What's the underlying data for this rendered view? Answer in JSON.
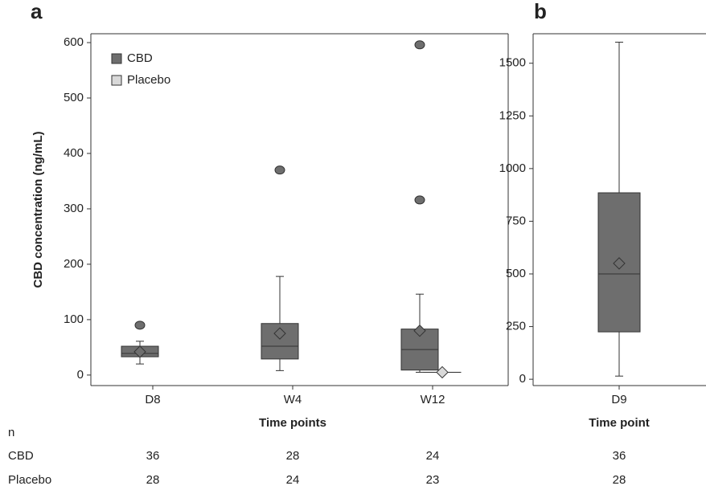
{
  "n_label": "n",
  "chart_data": [
    {
      "type": "box",
      "panel_label": "a",
      "y_label": "CBD concentration (ng/mL)",
      "x_label": "Time points",
      "categories": [
        "D8",
        "W4",
        "W12"
      ],
      "ylim": [
        -19,
        616
      ],
      "yticks": [
        0,
        100,
        200,
        300,
        400,
        500,
        600
      ],
      "legend": "upper left",
      "series": [
        {
          "name": "CBD",
          "color": "#6e6e6e",
          "values": [
            {
              "min": 20,
              "q1": 33,
              "median": 39,
              "q3": 52,
              "max": 61,
              "mean": 42,
              "outliers": [
                90
              ]
            },
            {
              "min": 8,
              "q1": 29,
              "median": 52,
              "q3": 93,
              "max": 178,
              "mean": 75,
              "outliers": [
                370
              ]
            },
            {
              "min": 5,
              "q1": 9,
              "median": 46,
              "q3": 83,
              "max": 146,
              "mean": 80,
              "outliers": [
                316,
                596
              ]
            }
          ]
        },
        {
          "name": "Placebo",
          "color": "#d9d9d9",
          "values": [
            null,
            null,
            {
              "min": 5,
              "q1": 5,
              "median": 5,
              "q3": 5,
              "max": 5,
              "mean": 5,
              "outliers": []
            }
          ]
        }
      ],
      "counts": [
        {
          "name": "CBD",
          "values": [
            36,
            28,
            24
          ]
        },
        {
          "name": "Placebo",
          "values": [
            28,
            24,
            23
          ]
        }
      ]
    },
    {
      "type": "box",
      "panel_label": "b",
      "x_label": "Time point",
      "categories": [
        "D9"
      ],
      "ylim": [
        -30,
        1640
      ],
      "yticks": [
        0,
        250,
        500,
        750,
        1000,
        1250,
        1500
      ],
      "series": [
        {
          "color": "#6e6e6e",
          "values": [
            {
              "min": 15,
              "q1": 225,
              "median": 500,
              "q3": 885,
              "max": 1600,
              "mean": 550,
              "outliers": []
            }
          ]
        }
      ],
      "counts": [
        {
          "values": [
            36
          ]
        },
        {
          "values": [
            28
          ]
        }
      ]
    }
  ]
}
